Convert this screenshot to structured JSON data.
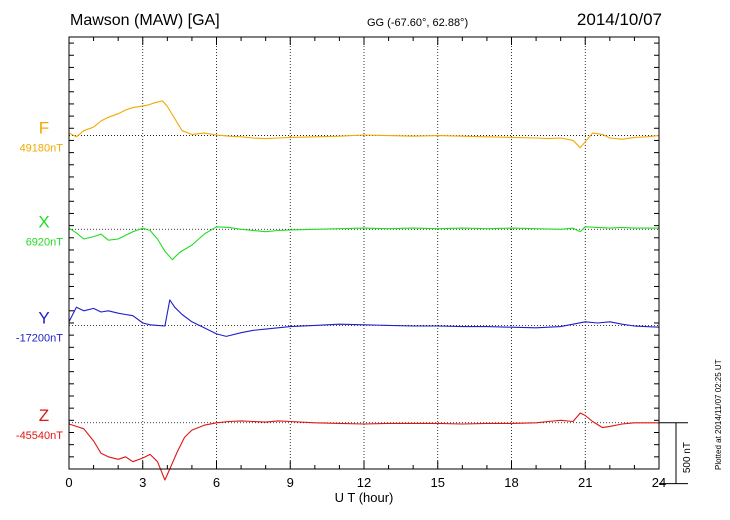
{
  "header": {
    "station": "Mawson (MAW)  [GA]",
    "coords": "GG (-67.60°,  62.88°)",
    "date": "2014/10/07"
  },
  "side_note": "Plotted at 2014/11/07 02:25 UT",
  "scale_bar": {
    "label": "500 nT",
    "value_nT": 500
  },
  "chart_data": {
    "type": "line",
    "xlabel": "U T (hour)",
    "xlim": [
      0,
      24
    ],
    "xticks": [
      0,
      3,
      6,
      9,
      12,
      15,
      18,
      21,
      24
    ],
    "grid": "dotted vertical at 3h intervals, dotted baseline per component",
    "series": [
      {
        "name": "F",
        "baseline_label": "49180nT",
        "baseline_nT": 49180,
        "color": "#f5a800",
        "points": [
          [
            0,
            20
          ],
          [
            0.3,
            -10
          ],
          [
            0.6,
            40
          ],
          [
            1,
            70
          ],
          [
            1.3,
            120
          ],
          [
            1.6,
            150
          ],
          [
            2,
            180
          ],
          [
            2.3,
            210
          ],
          [
            2.6,
            230
          ],
          [
            2.9,
            240
          ],
          [
            3.2,
            250
          ],
          [
            3.5,
            270
          ],
          [
            3.8,
            285
          ],
          [
            4,
            240
          ],
          [
            4.3,
            140
          ],
          [
            4.6,
            40
          ],
          [
            5,
            10
          ],
          [
            5.5,
            20
          ],
          [
            6,
            5
          ],
          [
            6.5,
            -5
          ],
          [
            7,
            -10
          ],
          [
            7.5,
            -20
          ],
          [
            8,
            -25
          ],
          [
            8.5,
            -20
          ],
          [
            9,
            -15
          ],
          [
            10,
            -10
          ],
          [
            11,
            -5
          ],
          [
            12,
            5
          ],
          [
            13,
            0
          ],
          [
            14,
            -5
          ],
          [
            15,
            0
          ],
          [
            16,
            -5
          ],
          [
            17,
            -10
          ],
          [
            18,
            -15
          ],
          [
            19,
            -20
          ],
          [
            19.5,
            -25
          ],
          [
            20,
            -20
          ],
          [
            20.5,
            -40
          ],
          [
            20.8,
            -100
          ],
          [
            21,
            -50
          ],
          [
            21.3,
            20
          ],
          [
            21.7,
            10
          ],
          [
            22,
            -20
          ],
          [
            22.5,
            -30
          ],
          [
            23,
            -15
          ],
          [
            23.5,
            -10
          ],
          [
            24,
            0
          ]
        ]
      },
      {
        "name": "X",
        "baseline_label": "6920nT",
        "baseline_nT": 6920,
        "color": "#22dd22",
        "points": [
          [
            0,
            10
          ],
          [
            0.3,
            -30
          ],
          [
            0.6,
            -80
          ],
          [
            1,
            -60
          ],
          [
            1.3,
            -40
          ],
          [
            1.6,
            -90
          ],
          [
            2,
            -80
          ],
          [
            2.3,
            -50
          ],
          [
            2.6,
            -20
          ],
          [
            3,
            10
          ],
          [
            3.3,
            -10
          ],
          [
            3.6,
            -80
          ],
          [
            3.9,
            -180
          ],
          [
            4.2,
            -250
          ],
          [
            4.5,
            -190
          ],
          [
            5,
            -130
          ],
          [
            5.5,
            -40
          ],
          [
            6,
            20
          ],
          [
            6.5,
            15
          ],
          [
            7,
            0
          ],
          [
            7.5,
            -10
          ],
          [
            8,
            -20
          ],
          [
            8.5,
            -10
          ],
          [
            9,
            -5
          ],
          [
            10,
            0
          ],
          [
            11,
            5
          ],
          [
            12,
            10
          ],
          [
            13,
            5
          ],
          [
            14,
            10
          ],
          [
            15,
            5
          ],
          [
            16,
            10
          ],
          [
            17,
            5
          ],
          [
            18,
            10
          ],
          [
            19,
            5
          ],
          [
            20,
            0
          ],
          [
            20.5,
            10
          ],
          [
            20.8,
            -20
          ],
          [
            21,
            20
          ],
          [
            21.5,
            15
          ],
          [
            22,
            10
          ],
          [
            22.5,
            15
          ],
          [
            23,
            10
          ],
          [
            24,
            10
          ]
        ]
      },
      {
        "name": "Y",
        "baseline_label": "-17200nT",
        "baseline_nT": -17200,
        "color": "#1f1fcc",
        "points": [
          [
            0,
            30
          ],
          [
            0.3,
            150
          ],
          [
            0.6,
            120
          ],
          [
            1,
            140
          ],
          [
            1.3,
            110
          ],
          [
            1.6,
            120
          ],
          [
            2,
            100
          ],
          [
            2.3,
            90
          ],
          [
            2.6,
            80
          ],
          [
            3,
            20
          ],
          [
            3.3,
            5
          ],
          [
            3.6,
            0
          ],
          [
            3.9,
            -5
          ],
          [
            4.1,
            210
          ],
          [
            4.3,
            150
          ],
          [
            4.6,
            90
          ],
          [
            5,
            30
          ],
          [
            5.5,
            -20
          ],
          [
            6,
            -70
          ],
          [
            6.4,
            -90
          ],
          [
            7,
            -60
          ],
          [
            7.5,
            -40
          ],
          [
            8,
            -30
          ],
          [
            8.5,
            -20
          ],
          [
            9,
            -10
          ],
          [
            10,
            0
          ],
          [
            11,
            10
          ],
          [
            12,
            5
          ],
          [
            13,
            0
          ],
          [
            14,
            -5
          ],
          [
            15,
            -5
          ],
          [
            16,
            -10
          ],
          [
            17,
            -10
          ],
          [
            18,
            -15
          ],
          [
            19,
            -20
          ],
          [
            20,
            -10
          ],
          [
            20.5,
            10
          ],
          [
            21,
            30
          ],
          [
            21.5,
            20
          ],
          [
            22,
            30
          ],
          [
            22.5,
            10
          ],
          [
            23,
            -5
          ],
          [
            24,
            -15
          ]
        ]
      },
      {
        "name": "Z",
        "baseline_label": "-45540nT",
        "baseline_nT": -45540,
        "color": "#e01515",
        "points": [
          [
            0,
            -10
          ],
          [
            0.3,
            -30
          ],
          [
            0.6,
            -50
          ],
          [
            1,
            -150
          ],
          [
            1.3,
            -250
          ],
          [
            1.6,
            -280
          ],
          [
            2,
            -300
          ],
          [
            2.3,
            -280
          ],
          [
            2.6,
            -320
          ],
          [
            3,
            -290
          ],
          [
            3.3,
            -260
          ],
          [
            3.6,
            -320
          ],
          [
            3.9,
            -470
          ],
          [
            4.1,
            -380
          ],
          [
            4.4,
            -240
          ],
          [
            4.7,
            -120
          ],
          [
            5,
            -60
          ],
          [
            5.5,
            -20
          ],
          [
            6,
            0
          ],
          [
            6.5,
            10
          ],
          [
            7,
            15
          ],
          [
            7.5,
            10
          ],
          [
            8,
            5
          ],
          [
            8.5,
            15
          ],
          [
            9,
            10
          ],
          [
            10,
            0
          ],
          [
            11,
            -5
          ],
          [
            12,
            -10
          ],
          [
            13,
            -5
          ],
          [
            14,
            -5
          ],
          [
            15,
            -5
          ],
          [
            16,
            -10
          ],
          [
            17,
            -5
          ],
          [
            18,
            -5
          ],
          [
            19,
            0
          ],
          [
            19.5,
            10
          ],
          [
            20,
            20
          ],
          [
            20.5,
            10
          ],
          [
            20.8,
            80
          ],
          [
            21,
            60
          ],
          [
            21.3,
            10
          ],
          [
            21.7,
            -40
          ],
          [
            22,
            -30
          ],
          [
            22.5,
            -10
          ],
          [
            23,
            0
          ],
          [
            24,
            0
          ]
        ]
      }
    ],
    "panel_offsets_nT": {
      "F": 1040,
      "X": 270,
      "Y": -520,
      "Z": -1320
    },
    "ylim_nT": [
      -1700,
      1850
    ]
  }
}
